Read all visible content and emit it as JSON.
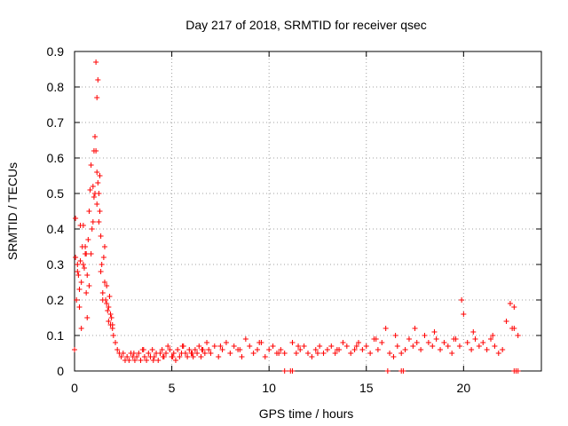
{
  "chart_data": {
    "type": "scatter",
    "title": "Day 217 of 2018, SRMTID for receiver qsec",
    "xlabel": "GPS time / hours",
    "ylabel": "SRMTID / TECUs",
    "xlim": [
      0,
      24
    ],
    "ylim": [
      0,
      0.9
    ],
    "x_ticks": [
      0,
      5,
      10,
      15,
      20
    ],
    "y_ticks": [
      0,
      0.1,
      0.2,
      0.3,
      0.4,
      0.5,
      0.6,
      0.7,
      0.8,
      0.9
    ],
    "x_tick_labels": [
      "0",
      "5",
      "10",
      "15",
      "20"
    ],
    "y_tick_labels": [
      "0",
      "0.1",
      "0.2",
      "0.3",
      "0.4",
      "0.5",
      "0.6",
      "0.7",
      "0.8",
      "0.9"
    ],
    "grid": true,
    "marker": "+",
    "color": "#ff0000",
    "series": [
      {
        "name": "SRMTID",
        "x": [
          0.0,
          0.05,
          0.1,
          0.15,
          0.2,
          0.25,
          0.3,
          0.35,
          0.4,
          0.45,
          0.5,
          0.55,
          0.6,
          0.65,
          0.7,
          0.75,
          0.8,
          0.85,
          0.9,
          0.95,
          1.0,
          1.05,
          1.1,
          1.15,
          1.2,
          1.25,
          1.3,
          1.35,
          1.4,
          1.45,
          1.5,
          1.55,
          1.6,
          1.65,
          1.7,
          1.75,
          1.8,
          1.85,
          1.9,
          1.95,
          2.0,
          2.1,
          2.2,
          2.3,
          2.4,
          2.5,
          2.6,
          2.7,
          2.8,
          2.9,
          3.0,
          3.1,
          3.2,
          3.3,
          3.4,
          3.5,
          3.6,
          3.7,
          3.8,
          3.9,
          4.0,
          4.1,
          4.2,
          4.3,
          4.4,
          4.5,
          4.6,
          4.7,
          4.8,
          4.9,
          5.0,
          5.1,
          5.2,
          5.3,
          5.4,
          5.5,
          5.6,
          5.7,
          5.8,
          5.9,
          6.0,
          6.1,
          6.2,
          6.3,
          6.4,
          6.5,
          6.6,
          6.7,
          6.8,
          6.9,
          7.0,
          7.2,
          7.4,
          7.6,
          7.8,
          8.0,
          8.2,
          8.4,
          8.6,
          8.8,
          9.0,
          9.2,
          9.4,
          9.6,
          9.8,
          10.0,
          10.2,
          10.4,
          10.6,
          10.8,
          11.2,
          11.4,
          11.6,
          11.8,
          12.0,
          12.2,
          12.4,
          12.6,
          12.8,
          13.0,
          13.2,
          13.4,
          13.6,
          13.8,
          14.0,
          14.2,
          14.4,
          14.6,
          14.8,
          15.0,
          15.2,
          15.4,
          15.6,
          15.8,
          16.0,
          16.2,
          16.4,
          16.6,
          16.8,
          17.0,
          17.2,
          17.4,
          17.6,
          17.8,
          18.0,
          18.2,
          18.4,
          18.6,
          18.8,
          19.0,
          19.2,
          19.4,
          19.6,
          19.8,
          20.0,
          20.2,
          20.4,
          20.6,
          20.8,
          21.0,
          21.2,
          21.4,
          21.6,
          21.8,
          22.0,
          22.2,
          22.4,
          22.6,
          22.8,
          0.05,
          0.15,
          0.25,
          0.35,
          0.45,
          0.55,
          0.65,
          0.75,
          0.85,
          0.95,
          1.05,
          1.15,
          1.25,
          1.35,
          1.45,
          1.55,
          1.65,
          1.75,
          1.85,
          1.95,
          3.05,
          3.55,
          4.05,
          4.55,
          5.05,
          5.55,
          6.05,
          6.55,
          7.5,
          8.5,
          9.5,
          10.5,
          11.5,
          12.5,
          13.5,
          14.5,
          15.5,
          16.5,
          17.5,
          18.5,
          19.5,
          20.5,
          21.5,
          22.5,
          1.1,
          1.15,
          1.2,
          0.3,
          0.6,
          1.0,
          1.3,
          19.9,
          22.6,
          10.8,
          11.1,
          11.2,
          16.1,
          16.8,
          16.9,
          22.6,
          22.7,
          22.8
        ],
        "y": [
          0.06,
          0.43,
          0.2,
          0.3,
          0.27,
          0.23,
          0.31,
          0.12,
          0.35,
          0.41,
          0.29,
          0.33,
          0.22,
          0.27,
          0.37,
          0.45,
          0.51,
          0.58,
          0.4,
          0.52,
          0.49,
          0.66,
          0.62,
          0.56,
          0.53,
          0.5,
          0.45,
          0.38,
          0.3,
          0.22,
          0.32,
          0.25,
          0.2,
          0.19,
          0.17,
          0.14,
          0.21,
          0.13,
          0.15,
          0.12,
          0.1,
          0.08,
          0.06,
          0.05,
          0.04,
          0.05,
          0.03,
          0.04,
          0.03,
          0.05,
          0.04,
          0.03,
          0.04,
          0.05,
          0.03,
          0.06,
          0.04,
          0.03,
          0.05,
          0.04,
          0.06,
          0.04,
          0.05,
          0.03,
          0.05,
          0.06,
          0.04,
          0.05,
          0.07,
          0.06,
          0.04,
          0.05,
          0.03,
          0.06,
          0.04,
          0.05,
          0.07,
          0.05,
          0.04,
          0.06,
          0.05,
          0.04,
          0.06,
          0.05,
          0.07,
          0.04,
          0.06,
          0.05,
          0.08,
          0.06,
          0.05,
          0.07,
          0.04,
          0.06,
          0.08,
          0.05,
          0.07,
          0.06,
          0.04,
          0.09,
          0.07,
          0.05,
          0.06,
          0.08,
          0.04,
          0.06,
          0.07,
          0.05,
          0.06,
          0.05,
          0.08,
          0.05,
          0.06,
          0.07,
          0.05,
          0.04,
          0.06,
          0.07,
          0.05,
          0.06,
          0.07,
          0.05,
          0.06,
          0.08,
          0.07,
          0.05,
          0.06,
          0.08,
          0.06,
          0.07,
          0.05,
          0.09,
          0.06,
          0.08,
          0.12,
          0.05,
          0.04,
          0.07,
          0.05,
          0.06,
          0.09,
          0.07,
          0.08,
          0.06,
          0.1,
          0.08,
          0.07,
          0.09,
          0.06,
          0.08,
          0.07,
          0.05,
          0.09,
          0.07,
          0.16,
          0.08,
          0.06,
          0.09,
          0.07,
          0.08,
          0.06,
          0.09,
          0.07,
          0.05,
          0.06,
          0.14,
          0.19,
          0.12,
          0.1,
          0.32,
          0.28,
          0.18,
          0.25,
          0.3,
          0.35,
          0.15,
          0.24,
          0.33,
          0.42,
          0.5,
          0.47,
          0.42,
          0.28,
          0.2,
          0.35,
          0.24,
          0.18,
          0.16,
          0.13,
          0.05,
          0.06,
          0.03,
          0.04,
          0.04,
          0.07,
          0.05,
          0.06,
          0.07,
          0.06,
          0.08,
          0.05,
          0.07,
          0.05,
          0.06,
          0.07,
          0.09,
          0.1,
          0.12,
          0.11,
          0.09,
          0.11,
          0.1,
          0.12,
          0.87,
          0.77,
          0.82,
          0.41,
          0.33,
          0.62,
          0.55,
          0.2,
          0.18,
          0.0,
          0.0,
          0.0,
          0.0,
          0.0,
          0.0,
          0.0,
          0.0,
          0.0
        ]
      }
    ]
  }
}
